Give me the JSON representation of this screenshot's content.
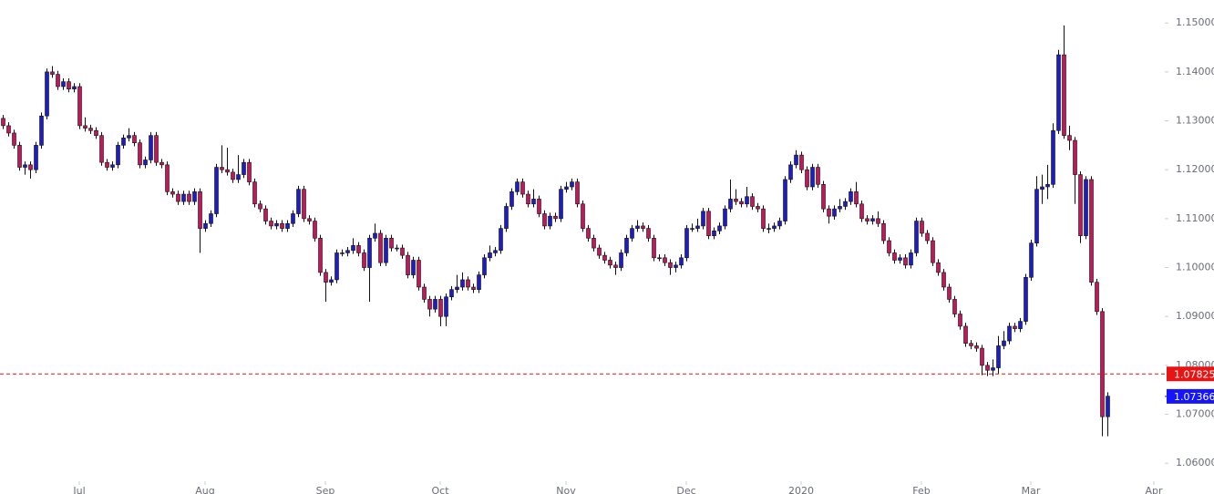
{
  "chart_data": {
    "type": "candlestick",
    "up_color": "#1c1cc8",
    "down_color": "#c2185b",
    "wick_color": "#111111",
    "ylim": [
      1.0578,
      1.1547
    ],
    "xlim": [
      -0.5,
      212.5
    ],
    "yticks": [
      {
        "value": 1.06,
        "label": "1.06000"
      },
      {
        "value": 1.07,
        "label": "1.07000"
      },
      {
        "value": 1.08,
        "label": "1.08000"
      },
      {
        "value": 1.09,
        "label": "1.09000"
      },
      {
        "value": 1.1,
        "label": "1.10000"
      },
      {
        "value": 1.11,
        "label": "1.11000"
      },
      {
        "value": 1.12,
        "label": "1.12000"
      },
      {
        "value": 1.13,
        "label": "1.13000"
      },
      {
        "value": 1.14,
        "label": "1.14000"
      },
      {
        "value": 1.15,
        "label": "1.15000"
      }
    ],
    "xticks": [
      {
        "value": 14,
        "label": "Jul"
      },
      {
        "value": 37,
        "label": "Aug"
      },
      {
        "value": 59,
        "label": "Sep"
      },
      {
        "value": 80,
        "label": "Oct"
      },
      {
        "value": 103,
        "label": "Nov"
      },
      {
        "value": 125,
        "label": "Dec"
      },
      {
        "value": 146,
        "label": "2020"
      },
      {
        "value": 168,
        "label": "Feb"
      },
      {
        "value": 188,
        "label": "Mar"
      },
      {
        "value": 210.5,
        "label": "Apr"
      }
    ],
    "price_lines": [
      {
        "value": 1.07825,
        "color": "#e81414",
        "dashed": true
      },
      {
        "value": 1.07366,
        "color": "#1414ff",
        "dashed": false
      }
    ],
    "ohlc": [
      [
        1.1305,
        1.1312,
        1.1283,
        1.129
      ],
      [
        1.129,
        1.1297,
        1.1268,
        1.1275
      ],
      [
        1.1275,
        1.1282,
        1.1243,
        1.125
      ],
      [
        1.125,
        1.1257,
        1.1198,
        1.1205
      ],
      [
        1.1205,
        1.1217,
        1.119,
        1.121
      ],
      [
        1.121,
        1.1217,
        1.1182,
        1.12
      ],
      [
        1.12,
        1.1257,
        1.1193,
        1.125
      ],
      [
        1.125,
        1.1317,
        1.1243,
        1.131
      ],
      [
        1.131,
        1.1407,
        1.1303,
        1.14
      ],
      [
        1.14,
        1.1412,
        1.1388,
        1.1395
      ],
      [
        1.1395,
        1.1402,
        1.1363,
        1.137
      ],
      [
        1.137,
        1.1387,
        1.1363,
        1.138
      ],
      [
        1.138,
        1.1387,
        1.1358,
        1.1365
      ],
      [
        1.1365,
        1.1377,
        1.1358,
        1.137
      ],
      [
        1.137,
        1.1377,
        1.1283,
        1.129
      ],
      [
        1.129,
        1.1307,
        1.1278,
        1.1285
      ],
      [
        1.1285,
        1.1292,
        1.1273,
        1.128
      ],
      [
        1.128,
        1.1287,
        1.1263,
        1.127
      ],
      [
        1.127,
        1.1277,
        1.1208,
        1.1215
      ],
      [
        1.1215,
        1.1222,
        1.1198,
        1.1205
      ],
      [
        1.1205,
        1.1217,
        1.1198,
        1.121
      ],
      [
        1.121,
        1.1257,
        1.1203,
        1.125
      ],
      [
        1.125,
        1.1272,
        1.1243,
        1.1265
      ],
      [
        1.1265,
        1.1285,
        1.1258,
        1.127
      ],
      [
        1.127,
        1.1277,
        1.1248,
        1.1255
      ],
      [
        1.1255,
        1.1262,
        1.1203,
        1.121
      ],
      [
        1.121,
        1.1227,
        1.1203,
        1.122
      ],
      [
        1.122,
        1.1277,
        1.1213,
        1.127
      ],
      [
        1.127,
        1.1277,
        1.1208,
        1.1215
      ],
      [
        1.1215,
        1.1222,
        1.1203,
        1.121
      ],
      [
        1.121,
        1.1217,
        1.1148,
        1.1155
      ],
      [
        1.1155,
        1.1162,
        1.1143,
        1.115
      ],
      [
        1.115,
        1.1157,
        1.1128,
        1.1135
      ],
      [
        1.1135,
        1.1157,
        1.1128,
        1.115
      ],
      [
        1.115,
        1.1157,
        1.1128,
        1.1135
      ],
      [
        1.1135,
        1.1162,
        1.1128,
        1.1155
      ],
      [
        1.1155,
        1.1162,
        1.103,
        1.108
      ],
      [
        1.108,
        1.1097,
        1.1073,
        1.109
      ],
      [
        1.109,
        1.1117,
        1.1083,
        1.111
      ],
      [
        1.111,
        1.1212,
        1.1103,
        1.1205
      ],
      [
        1.1205,
        1.125,
        1.1193,
        1.12
      ],
      [
        1.12,
        1.1245,
        1.1188,
        1.1195
      ],
      [
        1.1195,
        1.1202,
        1.1173,
        1.118
      ],
      [
        1.118,
        1.123,
        1.1173,
        1.119
      ],
      [
        1.119,
        1.1222,
        1.1183,
        1.1215
      ],
      [
        1.1215,
        1.1222,
        1.1168,
        1.1175
      ],
      [
        1.1175,
        1.1182,
        1.1123,
        1.113
      ],
      [
        1.113,
        1.1137,
        1.1113,
        1.112
      ],
      [
        1.112,
        1.1127,
        1.1088,
        1.1095
      ],
      [
        1.1095,
        1.1102,
        1.1078,
        1.1085
      ],
      [
        1.1085,
        1.1097,
        1.1078,
        1.109
      ],
      [
        1.109,
        1.1097,
        1.1073,
        1.108
      ],
      [
        1.108,
        1.1097,
        1.1073,
        1.109
      ],
      [
        1.109,
        1.1117,
        1.1083,
        1.111
      ],
      [
        1.111,
        1.1167,
        1.1103,
        1.116
      ],
      [
        1.116,
        1.1167,
        1.1093,
        1.11
      ],
      [
        1.11,
        1.1107,
        1.1088,
        1.1095
      ],
      [
        1.1095,
        1.1102,
        1.1053,
        1.106
      ],
      [
        1.106,
        1.1067,
        1.0983,
        1.099
      ],
      [
        1.099,
        1.0997,
        1.093,
        1.097
      ],
      [
        1.097,
        1.0982,
        1.0963,
        1.0975
      ],
      [
        1.0975,
        1.1037,
        1.0968,
        1.103
      ],
      [
        1.103,
        1.1037,
        1.1023,
        1.103
      ],
      [
        1.103,
        1.1042,
        1.1023,
        1.1035
      ],
      [
        1.1035,
        1.106,
        1.1028,
        1.1045
      ],
      [
        1.1045,
        1.1052,
        1.1023,
        1.103
      ],
      [
        1.103,
        1.1037,
        1.0993,
        1.1
      ],
      [
        1.1,
        1.1067,
        1.093,
        1.106
      ],
      [
        1.106,
        1.109,
        1.1053,
        1.107
      ],
      [
        1.107,
        1.1077,
        1.1003,
        1.101
      ],
      [
        1.101,
        1.1067,
        1.1003,
        1.106
      ],
      [
        1.106,
        1.1067,
        1.1033,
        1.104
      ],
      [
        1.104,
        1.1047,
        1.1033,
        1.104
      ],
      [
        1.104,
        1.1047,
        1.1018,
        1.1025
      ],
      [
        1.1025,
        1.1032,
        1.0978,
        1.0985
      ],
      [
        1.0985,
        1.1022,
        1.0978,
        1.1015
      ],
      [
        1.1015,
        1.1022,
        1.0953,
        1.096
      ],
      [
        1.096,
        1.0967,
        1.0928,
        1.0935
      ],
      [
        1.0935,
        1.0942,
        1.09,
        1.0915
      ],
      [
        1.0915,
        1.0942,
        1.0908,
        1.0935
      ],
      [
        1.0935,
        1.0942,
        1.088,
        1.09
      ],
      [
        1.09,
        1.0947,
        1.088,
        1.094
      ],
      [
        1.094,
        1.0962,
        1.0933,
        1.0955
      ],
      [
        1.0955,
        1.0985,
        1.0948,
        1.096
      ],
      [
        1.096,
        1.099,
        1.0953,
        1.0975
      ],
      [
        1.0975,
        1.0982,
        1.0953,
        1.096
      ],
      [
        1.096,
        1.0967,
        1.0948,
        1.0955
      ],
      [
        1.0955,
        1.0992,
        1.0948,
        1.0985
      ],
      [
        1.0985,
        1.1027,
        1.0978,
        1.102
      ],
      [
        1.102,
        1.1045,
        1.1013,
        1.103
      ],
      [
        1.103,
        1.1042,
        1.1023,
        1.1035
      ],
      [
        1.1035,
        1.1087,
        1.1028,
        1.108
      ],
      [
        1.108,
        1.1132,
        1.1073,
        1.1125
      ],
      [
        1.1125,
        1.1162,
        1.1118,
        1.1155
      ],
      [
        1.1155,
        1.1182,
        1.1148,
        1.1175
      ],
      [
        1.1175,
        1.1182,
        1.1143,
        1.115
      ],
      [
        1.115,
        1.1157,
        1.1123,
        1.113
      ],
      [
        1.113,
        1.116,
        1.1123,
        1.114
      ],
      [
        1.114,
        1.1147,
        1.1103,
        1.111
      ],
      [
        1.111,
        1.1117,
        1.1078,
        1.1085
      ],
      [
        1.1085,
        1.1112,
        1.1078,
        1.1105
      ],
      [
        1.1105,
        1.1112,
        1.1093,
        1.11
      ],
      [
        1.11,
        1.1167,
        1.1093,
        1.116
      ],
      [
        1.116,
        1.1175,
        1.1153,
        1.1165
      ],
      [
        1.1165,
        1.1182,
        1.1158,
        1.1175
      ],
      [
        1.1175,
        1.1182,
        1.1123,
        1.113
      ],
      [
        1.113,
        1.1137,
        1.1073,
        1.108
      ],
      [
        1.108,
        1.1087,
        1.1053,
        1.106
      ],
      [
        1.106,
        1.1067,
        1.1033,
        1.104
      ],
      [
        1.104,
        1.1047,
        1.1018,
        1.1025
      ],
      [
        1.1025,
        1.1032,
        1.1008,
        1.1015
      ],
      [
        1.1015,
        1.1022,
        1.0998,
        1.1005
      ],
      [
        1.1005,
        1.1012,
        1.0985,
        1.1
      ],
      [
        1.1,
        1.1037,
        1.0993,
        1.103
      ],
      [
        1.103,
        1.1067,
        1.1023,
        1.106
      ],
      [
        1.106,
        1.1087,
        1.1053,
        1.108
      ],
      [
        1.108,
        1.1097,
        1.1073,
        1.1085
      ],
      [
        1.1085,
        1.1092,
        1.1073,
        1.108
      ],
      [
        1.108,
        1.1087,
        1.1053,
        1.106
      ],
      [
        1.106,
        1.1067,
        1.1013,
        1.102
      ],
      [
        1.102,
        1.1027,
        1.1013,
        1.102
      ],
      [
        1.102,
        1.1027,
        1.1003,
        1.101
      ],
      [
        1.101,
        1.1017,
        1.0985,
        1.1
      ],
      [
        1.1,
        1.1012,
        1.099,
        1.1005
      ],
      [
        1.1005,
        1.1027,
        1.0998,
        1.102
      ],
      [
        1.102,
        1.1087,
        1.1013,
        1.108
      ],
      [
        1.108,
        1.109,
        1.1073,
        1.108
      ],
      [
        1.108,
        1.11,
        1.1073,
        1.1085
      ],
      [
        1.1085,
        1.1122,
        1.1078,
        1.1115
      ],
      [
        1.1115,
        1.1122,
        1.1058,
        1.1065
      ],
      [
        1.1065,
        1.1082,
        1.1058,
        1.1075
      ],
      [
        1.1075,
        1.1092,
        1.1068,
        1.1085
      ],
      [
        1.1085,
        1.1127,
        1.1078,
        1.112
      ],
      [
        1.112,
        1.118,
        1.1113,
        1.114
      ],
      [
        1.114,
        1.116,
        1.1128,
        1.1135
      ],
      [
        1.1135,
        1.1142,
        1.1123,
        1.113
      ],
      [
        1.113,
        1.1165,
        1.1123,
        1.1145
      ],
      [
        1.1145,
        1.1152,
        1.1118,
        1.1125
      ],
      [
        1.1125,
        1.1132,
        1.1113,
        1.112
      ],
      [
        1.112,
        1.1127,
        1.1073,
        1.108
      ],
      [
        1.108,
        1.109,
        1.107,
        1.108
      ],
      [
        1.108,
        1.1092,
        1.1073,
        1.1085
      ],
      [
        1.1085,
        1.1102,
        1.1078,
        1.1095
      ],
      [
        1.1095,
        1.1187,
        1.1088,
        1.118
      ],
      [
        1.118,
        1.1217,
        1.1173,
        1.121
      ],
      [
        1.121,
        1.124,
        1.1203,
        1.123
      ],
      [
        1.123,
        1.1237,
        1.1193,
        1.12
      ],
      [
        1.12,
        1.1207,
        1.1158,
        1.1165
      ],
      [
        1.1165,
        1.1212,
        1.1158,
        1.1205
      ],
      [
        1.1205,
        1.1212,
        1.1163,
        1.117
      ],
      [
        1.117,
        1.1177,
        1.1113,
        1.112
      ],
      [
        1.112,
        1.1127,
        1.109,
        1.1105
      ],
      [
        1.1105,
        1.1127,
        1.1098,
        1.112
      ],
      [
        1.112,
        1.114,
        1.1113,
        1.1125
      ],
      [
        1.1125,
        1.1142,
        1.1118,
        1.1135
      ],
      [
        1.1135,
        1.1162,
        1.1128,
        1.1155
      ],
      [
        1.1155,
        1.1175,
        1.1123,
        1.113
      ],
      [
        1.113,
        1.1137,
        1.1093,
        1.11
      ],
      [
        1.11,
        1.1107,
        1.1088,
        1.1095
      ],
      [
        1.1095,
        1.1107,
        1.1088,
        1.11
      ],
      [
        1.11,
        1.1115,
        1.1083,
        1.109
      ],
      [
        1.109,
        1.1097,
        1.1048,
        1.1055
      ],
      [
        1.1055,
        1.1062,
        1.1023,
        1.103
      ],
      [
        1.103,
        1.1037,
        1.1008,
        1.1015
      ],
      [
        1.1015,
        1.1027,
        1.1008,
        1.102
      ],
      [
        1.102,
        1.1027,
        1.0998,
        1.1005
      ],
      [
        1.1005,
        1.1037,
        1.0998,
        1.103
      ],
      [
        1.103,
        1.1102,
        1.1023,
        1.1095
      ],
      [
        1.1095,
        1.1102,
        1.1063,
        1.107
      ],
      [
        1.107,
        1.1077,
        1.1048,
        1.1055
      ],
      [
        1.1055,
        1.1062,
        1.1003,
        1.101
      ],
      [
        1.101,
        1.1017,
        1.0983,
        1.099
      ],
      [
        1.099,
        1.0997,
        1.0953,
        1.096
      ],
      [
        1.096,
        1.0967,
        1.0928,
        1.0935
      ],
      [
        1.0935,
        1.0942,
        1.0898,
        1.0905
      ],
      [
        1.0905,
        1.0912,
        1.0873,
        1.088
      ],
      [
        1.088,
        1.0887,
        1.0838,
        1.0845
      ],
      [
        1.0845,
        1.0852,
        1.0833,
        1.084
      ],
      [
        1.084,
        1.0847,
        1.0828,
        1.0835
      ],
      [
        1.0835,
        1.0842,
        1.078,
        1.08
      ],
      [
        1.08,
        1.0807,
        1.0778,
        1.079
      ],
      [
        1.079,
        1.0812,
        1.0778,
        1.0795
      ],
      [
        1.0795,
        1.086,
        1.0783,
        1.084
      ],
      [
        1.084,
        1.087,
        1.0833,
        1.085
      ],
      [
        1.085,
        1.0887,
        1.0843,
        1.088
      ],
      [
        1.088,
        1.0887,
        1.0868,
        1.0875
      ],
      [
        1.0875,
        1.0897,
        1.0868,
        1.089
      ],
      [
        1.089,
        1.0987,
        1.0883,
        1.098
      ],
      [
        1.098,
        1.1057,
        1.0973,
        1.105
      ],
      [
        1.105,
        1.1187,
        1.1043,
        1.116
      ],
      [
        1.116,
        1.119,
        1.113,
        1.1165
      ],
      [
        1.1165,
        1.121,
        1.114,
        1.117
      ],
      [
        1.117,
        1.1295,
        1.1163,
        1.128
      ],
      [
        1.128,
        1.1445,
        1.1273,
        1.1435
      ],
      [
        1.1435,
        1.1495,
        1.1263,
        1.127
      ],
      [
        1.127,
        1.129,
        1.124,
        1.126
      ],
      [
        1.126,
        1.1267,
        1.113,
        1.119
      ],
      [
        1.119,
        1.1197,
        1.105,
        1.1065
      ],
      [
        1.1065,
        1.1187,
        1.1058,
        1.118
      ],
      [
        1.118,
        1.1187,
        1.0963,
        1.097
      ],
      [
        1.097,
        1.0977,
        1.0903,
        1.091
      ],
      [
        1.091,
        1.0917,
        1.0655,
        1.0695
      ],
      [
        1.0695,
        1.0745,
        1.0655,
        1.0737
      ]
    ]
  }
}
